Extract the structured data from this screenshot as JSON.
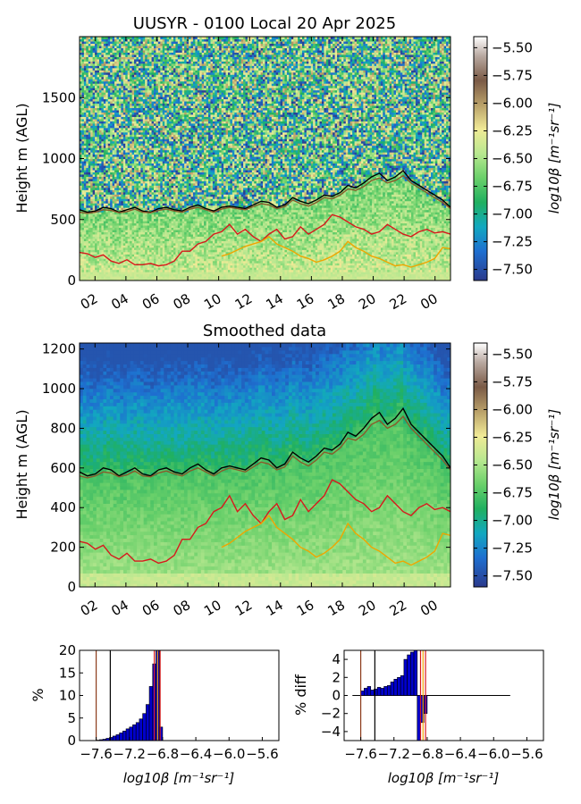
{
  "chart_data": [
    {
      "type": "heatmap",
      "title": "UUSYR - 0100 Local 20 Apr 2025",
      "ylabel": "Height m (AGL)",
      "xticks": [
        "02",
        "04",
        "06",
        "08",
        "10",
        "12",
        "14",
        "16",
        "18",
        "20",
        "22",
        "00"
      ],
      "yticks": [
        0,
        500,
        1000,
        1500
      ],
      "ylim": [
        0,
        2000
      ],
      "xlim_hours": [
        1,
        25
      ],
      "colorbar": {
        "label": "log10β [m⁻¹sr⁻¹]",
        "ticks": [
          "-5.50",
          "-5.75",
          "-6.00",
          "-6.25",
          "-6.50",
          "-6.75",
          "-7.00",
          "-7.25",
          "-7.50"
        ],
        "range": [
          -7.6,
          -5.4
        ]
      },
      "lines": [
        {
          "color": "#000000",
          "y": [
            580,
            560,
            570,
            600,
            590,
            560,
            580,
            600,
            570,
            560,
            590,
            600,
            580,
            570,
            600,
            620,
            590,
            570,
            600,
            610,
            600,
            590,
            620,
            650,
            640,
            600,
            620,
            680,
            650,
            630,
            660,
            700,
            690,
            720,
            780,
            760,
            800,
            850,
            880,
            820,
            850,
            900,
            820,
            780,
            740,
            700,
            660,
            600
          ]
        },
        {
          "color": "#8b5a2b",
          "y": [
            560,
            550,
            560,
            580,
            575,
            555,
            565,
            585,
            560,
            555,
            575,
            585,
            570,
            560,
            585,
            600,
            580,
            560,
            585,
            600,
            590,
            580,
            605,
            630,
            620,
            590,
            605,
            660,
            630,
            610,
            640,
            680,
            670,
            700,
            750,
            740,
            770,
            820,
            840,
            800,
            820,
            860,
            800,
            760,
            720,
            680,
            640,
            590
          ]
        },
        {
          "color": "#d7191c",
          "y": [
            230,
            220,
            190,
            210,
            160,
            140,
            170,
            130,
            130,
            140,
            120,
            130,
            160,
            240,
            240,
            300,
            320,
            380,
            400,
            460,
            380,
            420,
            360,
            320,
            380,
            420,
            340,
            360,
            440,
            380,
            420,
            460,
            540,
            520,
            480,
            440,
            420,
            380,
            400,
            460,
            420,
            380,
            360,
            400,
            420,
            390,
            400,
            380
          ]
        },
        {
          "color": "#f0a500",
          "y": [
            null,
            null,
            null,
            null,
            null,
            null,
            null,
            null,
            null,
            null,
            null,
            null,
            null,
            null,
            null,
            null,
            null,
            null,
            200,
            220,
            250,
            280,
            300,
            320,
            360,
            300,
            270,
            240,
            200,
            180,
            150,
            170,
            200,
            240,
            320,
            270,
            240,
            200,
            180,
            150,
            120,
            130,
            110,
            130,
            150,
            180,
            270,
            260
          ]
        }
      ]
    },
    {
      "type": "heatmap",
      "title": "Smoothed data",
      "ylabel": "Height m (AGL)",
      "xticks": [
        "02",
        "04",
        "06",
        "08",
        "10",
        "12",
        "14",
        "16",
        "18",
        "20",
        "22",
        "00"
      ],
      "yticks": [
        0,
        200,
        400,
        600,
        800,
        1000,
        1200
      ],
      "ylim": [
        0,
        1230
      ],
      "xlim_hours": [
        1,
        25
      ],
      "colorbar": {
        "label": "log10β [m⁻¹sr⁻¹]",
        "ticks": [
          "-5.50",
          "-5.75",
          "-6.00",
          "-6.25",
          "-6.50",
          "-6.75",
          "-7.00",
          "-7.25",
          "-7.50"
        ],
        "range": [
          -7.6,
          -5.4
        ]
      }
    },
    {
      "type": "bar",
      "ylabel": "%",
      "xlabel": "log10β [m⁻¹sr⁻¹]",
      "xticks": [
        "-7.6",
        "-7.2",
        "-6.8",
        "-6.4",
        "-6.0",
        "-5.6"
      ],
      "yticks": [
        0,
        5,
        10,
        15,
        20
      ],
      "xlim": [
        -7.8,
        -5.4
      ],
      "ylim": [
        0,
        20
      ],
      "bins": [
        -7.58,
        -7.54,
        -7.5,
        -7.46,
        -7.42,
        -7.38,
        -7.34,
        -7.3,
        -7.26,
        -7.22,
        -7.18,
        -7.14,
        -7.1,
        -7.06,
        -7.02,
        -6.98,
        -6.94,
        -6.9,
        -6.86,
        -6.82
      ],
      "values": [
        0.1,
        0.2,
        0.3,
        0.5,
        0.7,
        1.0,
        1.3,
        1.7,
        2.1,
        2.6,
        3.0,
        3.5,
        4.0,
        4.8,
        6.0,
        8.0,
        12.0,
        17.0,
        20.0,
        3.0
      ],
      "vlines": [
        {
          "x": -7.6,
          "color": "#8b3a1a"
        },
        {
          "x": -7.43,
          "color": "#000000"
        },
        {
          "x": -6.9,
          "color": "#d7191c"
        },
        {
          "x": -6.86,
          "color": "#f0a500"
        },
        {
          "x": -6.83,
          "color": "#d7191c"
        }
      ]
    },
    {
      "type": "bar",
      "ylabel": "% diff",
      "xlabel": "log10β [m⁻¹sr⁻¹]",
      "xticks": [
        "-7.6",
        "-7.2",
        "-6.8",
        "-6.4",
        "-6.0",
        "-5.6"
      ],
      "yticks": [
        -4,
        -2,
        0,
        2,
        4
      ],
      "xlim": [
        -7.8,
        -5.4
      ],
      "ylim": [
        -5,
        5
      ],
      "bins": [
        -7.66,
        -7.62,
        -7.58,
        -7.54,
        -7.5,
        -7.46,
        -7.42,
        -7.38,
        -7.34,
        -7.3,
        -7.26,
        -7.22,
        -7.18,
        -7.14,
        -7.1,
        -7.06,
        -7.02,
        -6.98,
        -6.94,
        -6.9,
        -6.86,
        -6.82,
        -6.78,
        -6.74
      ],
      "values": [
        0,
        0,
        0.5,
        0.8,
        1.0,
        0.6,
        0.7,
        0.9,
        0.8,
        1.0,
        1.1,
        1.5,
        1.8,
        2.0,
        2.2,
        4.0,
        4.5,
        4.8,
        5.0,
        -5.0,
        -3.0,
        -2.0,
        0,
        0
      ],
      "vlines": [
        {
          "x": -7.6,
          "color": "#8b3a1a"
        },
        {
          "x": -7.43,
          "color": "#000000"
        },
        {
          "x": -6.88,
          "color": "#d7191c"
        },
        {
          "x": -6.85,
          "color": "#f0a500"
        },
        {
          "x": -6.82,
          "color": "#d7191c"
        }
      ]
    }
  ]
}
